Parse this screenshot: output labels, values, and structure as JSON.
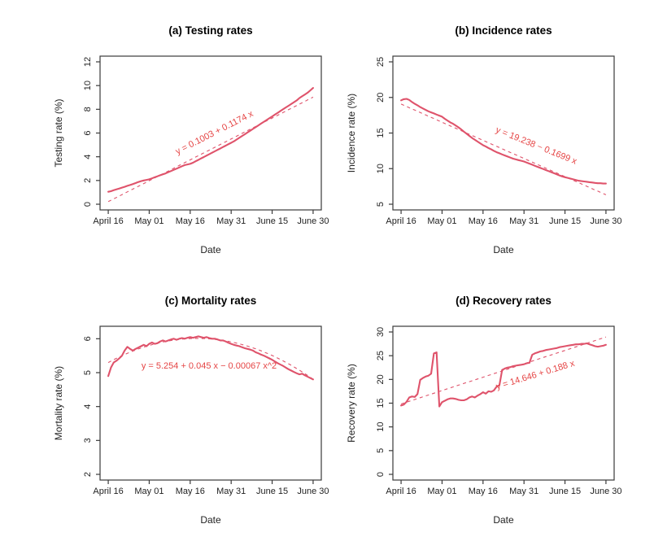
{
  "figure": {
    "background": "#ffffff",
    "axis_color": "#3a3a3a",
    "tick_text_color": "#1f1f1f",
    "title_color": "#000000",
    "series_color": "#DF536B",
    "fit_line_color": "#DF536B",
    "annotation_color": "#E54545"
  },
  "x_axis": {
    "label": "Date",
    "tick_days": [
      1,
      16,
      31,
      46,
      61,
      76
    ],
    "tick_labels": [
      "April 16",
      "May 01",
      "May 16",
      "May 31",
      "June 15",
      "June 30"
    ],
    "xlim": [
      1,
      76
    ]
  },
  "chart_data": [
    {
      "id": "a",
      "type": "line",
      "title": "(a) Testing rates",
      "xlabel": "Date",
      "ylabel": "Testing rate (%)",
      "ylim": [
        0,
        12
      ],
      "yticks": [
        0,
        2,
        4,
        6,
        8,
        10,
        12
      ],
      "x_description": "day index, 1 = April 16 through 76 = June 30",
      "values": [
        1.05,
        1.1,
        1.18,
        1.25,
        1.32,
        1.4,
        1.47,
        1.55,
        1.62,
        1.7,
        1.78,
        1.87,
        1.95,
        2.0,
        2.05,
        2.1,
        2.18,
        2.27,
        2.35,
        2.44,
        2.52,
        2.6,
        2.7,
        2.8,
        2.9,
        3.0,
        3.1,
        3.2,
        3.3,
        3.35,
        3.4,
        3.5,
        3.62,
        3.74,
        3.86,
        3.98,
        4.1,
        4.22,
        4.34,
        4.46,
        4.58,
        4.7,
        4.82,
        4.94,
        5.06,
        5.18,
        5.3,
        5.45,
        5.6,
        5.75,
        5.9,
        6.05,
        6.2,
        6.35,
        6.5,
        6.65,
        6.8,
        6.95,
        7.1,
        7.25,
        7.4,
        7.55,
        7.7,
        7.85,
        8.0,
        8.15,
        8.3,
        8.45,
        8.6,
        8.75,
        8.95,
        9.1,
        9.25,
        9.4,
        9.6,
        9.8
      ],
      "fit": {
        "equation": "y = 0.1003 + 0.1174 x",
        "coeffs": [
          0.1003,
          0.1174
        ]
      }
    },
    {
      "id": "b",
      "type": "line",
      "title": "(b) Incidence rates",
      "xlabel": "Date",
      "ylabel": "Incidence rate (%)",
      "ylim": [
        5,
        25
      ],
      "yticks": [
        5,
        10,
        15,
        20,
        25
      ],
      "x_description": "day index, 1 = April 16 through 76 = June 30",
      "values": [
        19.6,
        19.75,
        19.8,
        19.65,
        19.35,
        19.1,
        18.9,
        18.65,
        18.45,
        18.25,
        18.05,
        17.9,
        17.75,
        17.6,
        17.45,
        17.3,
        17.0,
        16.75,
        16.5,
        16.3,
        16.05,
        15.8,
        15.5,
        15.2,
        14.9,
        14.6,
        14.3,
        14.05,
        13.8,
        13.55,
        13.3,
        13.1,
        12.9,
        12.7,
        12.5,
        12.3,
        12.15,
        12.0,
        11.85,
        11.7,
        11.55,
        11.4,
        11.3,
        11.2,
        11.1,
        11.0,
        10.85,
        10.7,
        10.55,
        10.4,
        10.25,
        10.1,
        9.95,
        9.8,
        9.65,
        9.5,
        9.35,
        9.2,
        9.05,
        8.9,
        8.8,
        8.7,
        8.6,
        8.5,
        8.4,
        8.3,
        8.25,
        8.2,
        8.15,
        8.1,
        8.05,
        8.0,
        7.95,
        7.95,
        7.9,
        7.9
      ],
      "fit": {
        "equation": "y = 19.238 − 0.1699 x",
        "coeffs": [
          19.238,
          -0.1699
        ]
      }
    },
    {
      "id": "c",
      "type": "line",
      "title": "(c) Mortality rates",
      "xlabel": "Date",
      "ylabel": "Mortality rate (%)",
      "ylim": [
        2,
        6.2
      ],
      "yticks": [
        2,
        3,
        4,
        5,
        6
      ],
      "x_description": "day index, 1 = April 16 through 76 = June 30",
      "values": [
        4.9,
        5.15,
        5.3,
        5.35,
        5.42,
        5.5,
        5.65,
        5.76,
        5.7,
        5.65,
        5.7,
        5.74,
        5.78,
        5.82,
        5.78,
        5.85,
        5.89,
        5.85,
        5.87,
        5.92,
        5.95,
        5.92,
        5.95,
        5.98,
        6.0,
        5.97,
        6.0,
        6.02,
        6.0,
        6.03,
        6.05,
        6.03,
        6.05,
        6.07,
        6.05,
        6.03,
        6.05,
        6.02,
        6.0,
        6.0,
        5.98,
        5.95,
        5.95,
        5.92,
        5.88,
        5.85,
        5.82,
        5.8,
        5.78,
        5.75,
        5.72,
        5.7,
        5.68,
        5.65,
        5.6,
        5.57,
        5.53,
        5.5,
        5.46,
        5.42,
        5.38,
        5.33,
        5.28,
        5.24,
        5.2,
        5.15,
        5.1,
        5.06,
        5.02,
        4.98,
        4.95,
        4.97,
        4.92,
        4.88,
        4.84,
        4.8
      ],
      "fit": {
        "equation": "y = 5.254 + 0.045 x − 0.00067 x^2",
        "coeffs": [
          5.254,
          0.045,
          -0.00067
        ]
      }
    },
    {
      "id": "d",
      "type": "line",
      "title": "(d) Recovery rates",
      "xlabel": "Date",
      "ylabel": "Recovery rate (%)",
      "ylim": [
        0,
        30
      ],
      "yticks": [
        0,
        5,
        10,
        15,
        20,
        25,
        30
      ],
      "x_description": "day index, 1 = April 16 through 76 = June 30",
      "values": [
        14.5,
        14.7,
        15.3,
        16.2,
        16.4,
        16.3,
        16.9,
        19.9,
        20.3,
        20.6,
        20.8,
        21.2,
        25.5,
        25.7,
        14.3,
        15.2,
        15.5,
        15.8,
        16.0,
        16.0,
        15.9,
        15.7,
        15.6,
        15.6,
        15.8,
        16.2,
        16.4,
        16.2,
        16.6,
        16.9,
        17.3,
        17.0,
        17.5,
        17.4,
        17.7,
        18.5,
        18.8,
        22.0,
        22.3,
        22.5,
        22.6,
        22.8,
        22.9,
        23.0,
        23.1,
        23.2,
        23.4,
        23.5,
        25.2,
        25.5,
        25.7,
        25.9,
        26.0,
        26.2,
        26.3,
        26.4,
        26.5,
        26.6,
        26.8,
        26.9,
        27.0,
        27.1,
        27.2,
        27.3,
        27.4,
        27.4,
        27.5,
        27.5,
        27.6,
        27.4,
        27.2,
        27.0,
        26.9,
        27.0,
        27.1,
        27.3
      ],
      "fit": {
        "equation": "y = 14.646 + 0.188 x",
        "coeffs": [
          14.646,
          0.188
        ]
      }
    }
  ]
}
